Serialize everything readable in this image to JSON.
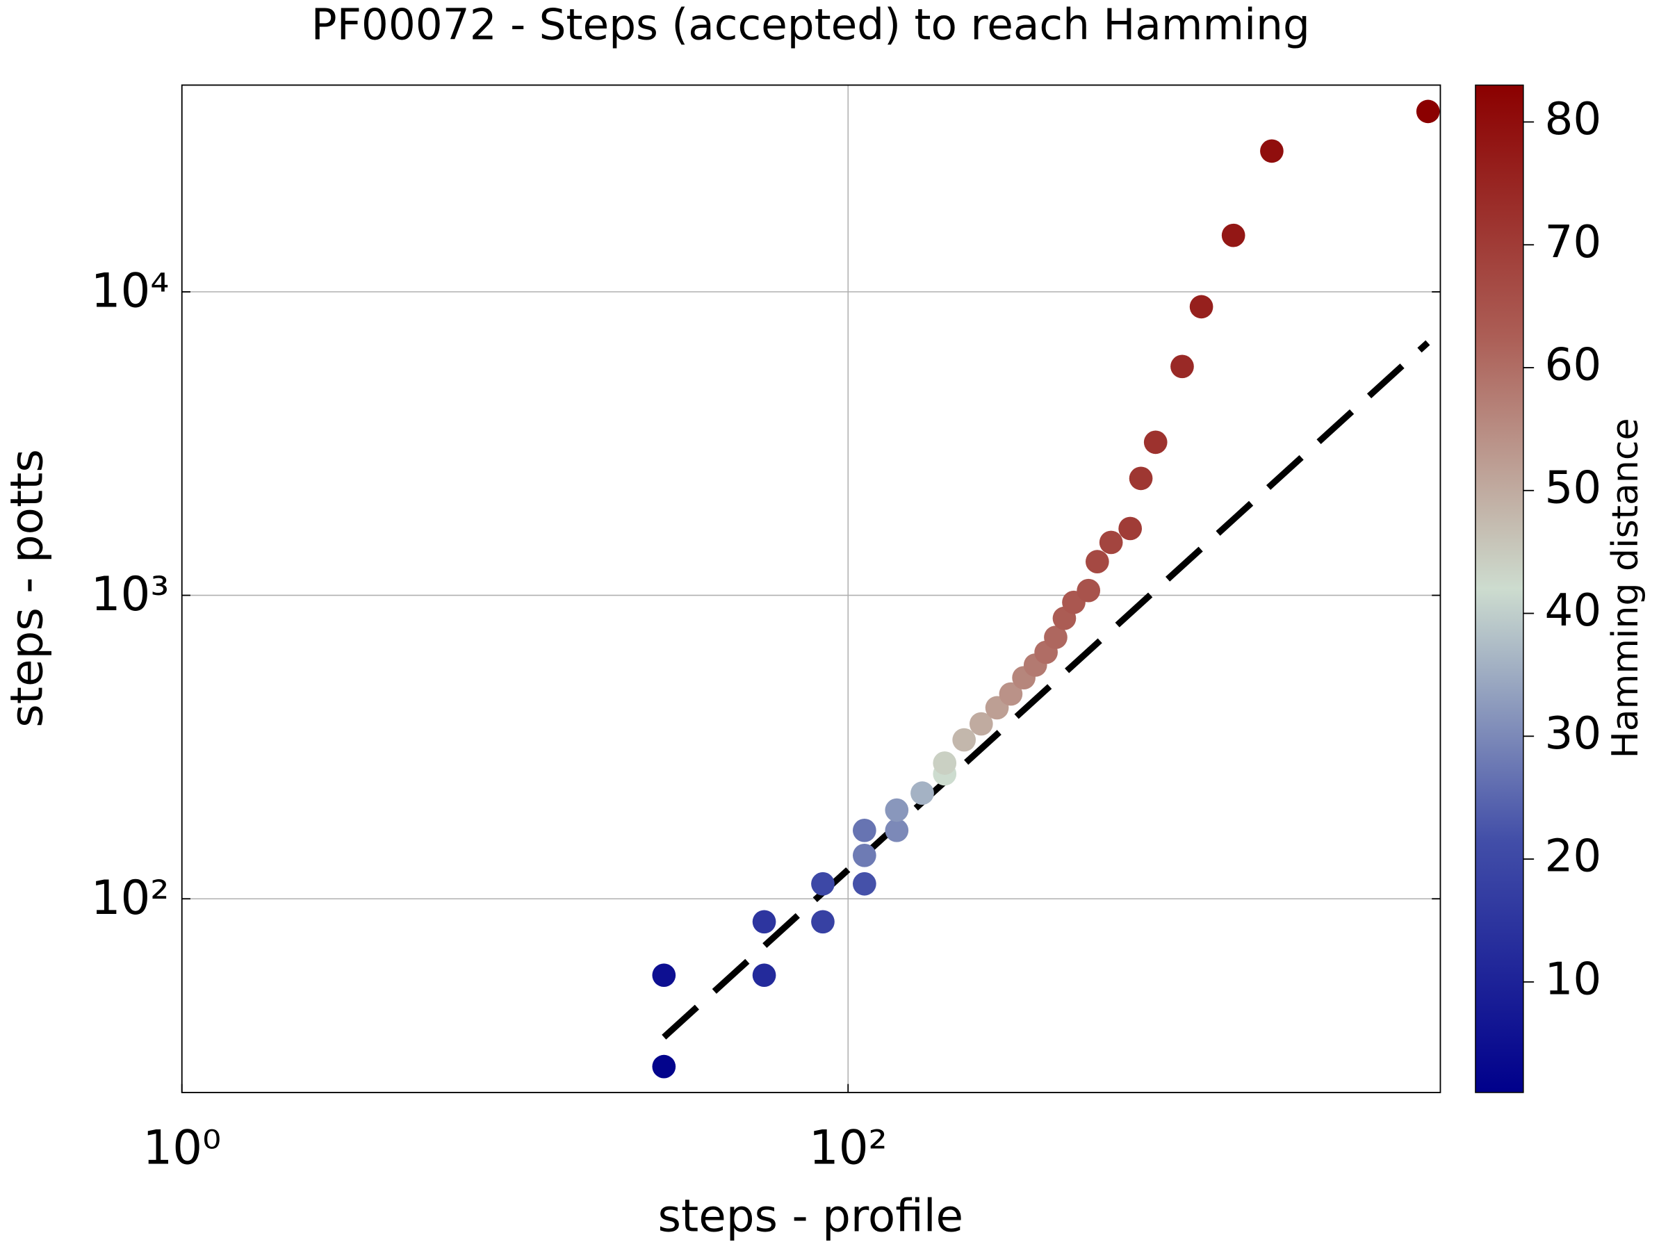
{
  "chart_data": {
    "type": "scatter",
    "title": "PF00072 - Steps (accepted) to reach Hamming",
    "x_label": "steps - profile",
    "y_label": "steps - potts",
    "colorbar_label": "Hamming distance",
    "xscale": "log",
    "yscale": "log",
    "xlim": [
      1,
      6000
    ],
    "ylim": [
      23,
      48000
    ],
    "xticks": [
      {
        "value": 1,
        "label": "10⁰"
      },
      {
        "value": 100,
        "label": "10²"
      }
    ],
    "yticks": [
      {
        "value": 100,
        "label": "10²"
      },
      {
        "value": 1000,
        "label": "10³"
      },
      {
        "value": 10000,
        "label": "10⁴"
      }
    ],
    "grid": true,
    "clim": [
      1,
      83
    ],
    "cticks": [
      10,
      20,
      30,
      40,
      50,
      60,
      70,
      80
    ],
    "x": [
      28,
      28,
      56,
      56,
      84,
      84,
      112,
      112,
      112,
      140,
      140,
      167,
      195,
      195,
      223,
      251,
      280,
      308,
      337,
      365,
      393,
      420,
      446,
      476,
      527,
      560,
      616,
      703,
      757,
      838,
      1007,
      1150,
      1435,
      1871,
      5510
    ],
    "y": [
      28,
      56,
      56,
      84,
      84,
      112,
      112,
      139,
      168,
      168,
      196,
      223,
      258,
      280,
      334,
      377,
      426,
      473,
      535,
      589,
      649,
      727,
      840,
      948,
      1037,
      1291,
      1494,
      1660,
      2428,
      3194,
      5675,
      8930,
      15350,
      29100,
      39300
    ],
    "hamming": [
      2,
      5,
      12,
      15,
      18,
      20,
      22,
      28,
      27,
      30,
      32,
      36,
      42,
      44,
      48,
      50,
      52,
      54,
      56,
      58,
      60,
      61,
      63,
      64,
      65,
      67,
      68,
      70,
      71,
      72,
      74,
      76,
      78,
      80,
      83
    ],
    "fit": {
      "x": [
        28,
        5500
      ],
      "y": [
        35,
        6800
      ],
      "color": "#000000"
    }
  }
}
